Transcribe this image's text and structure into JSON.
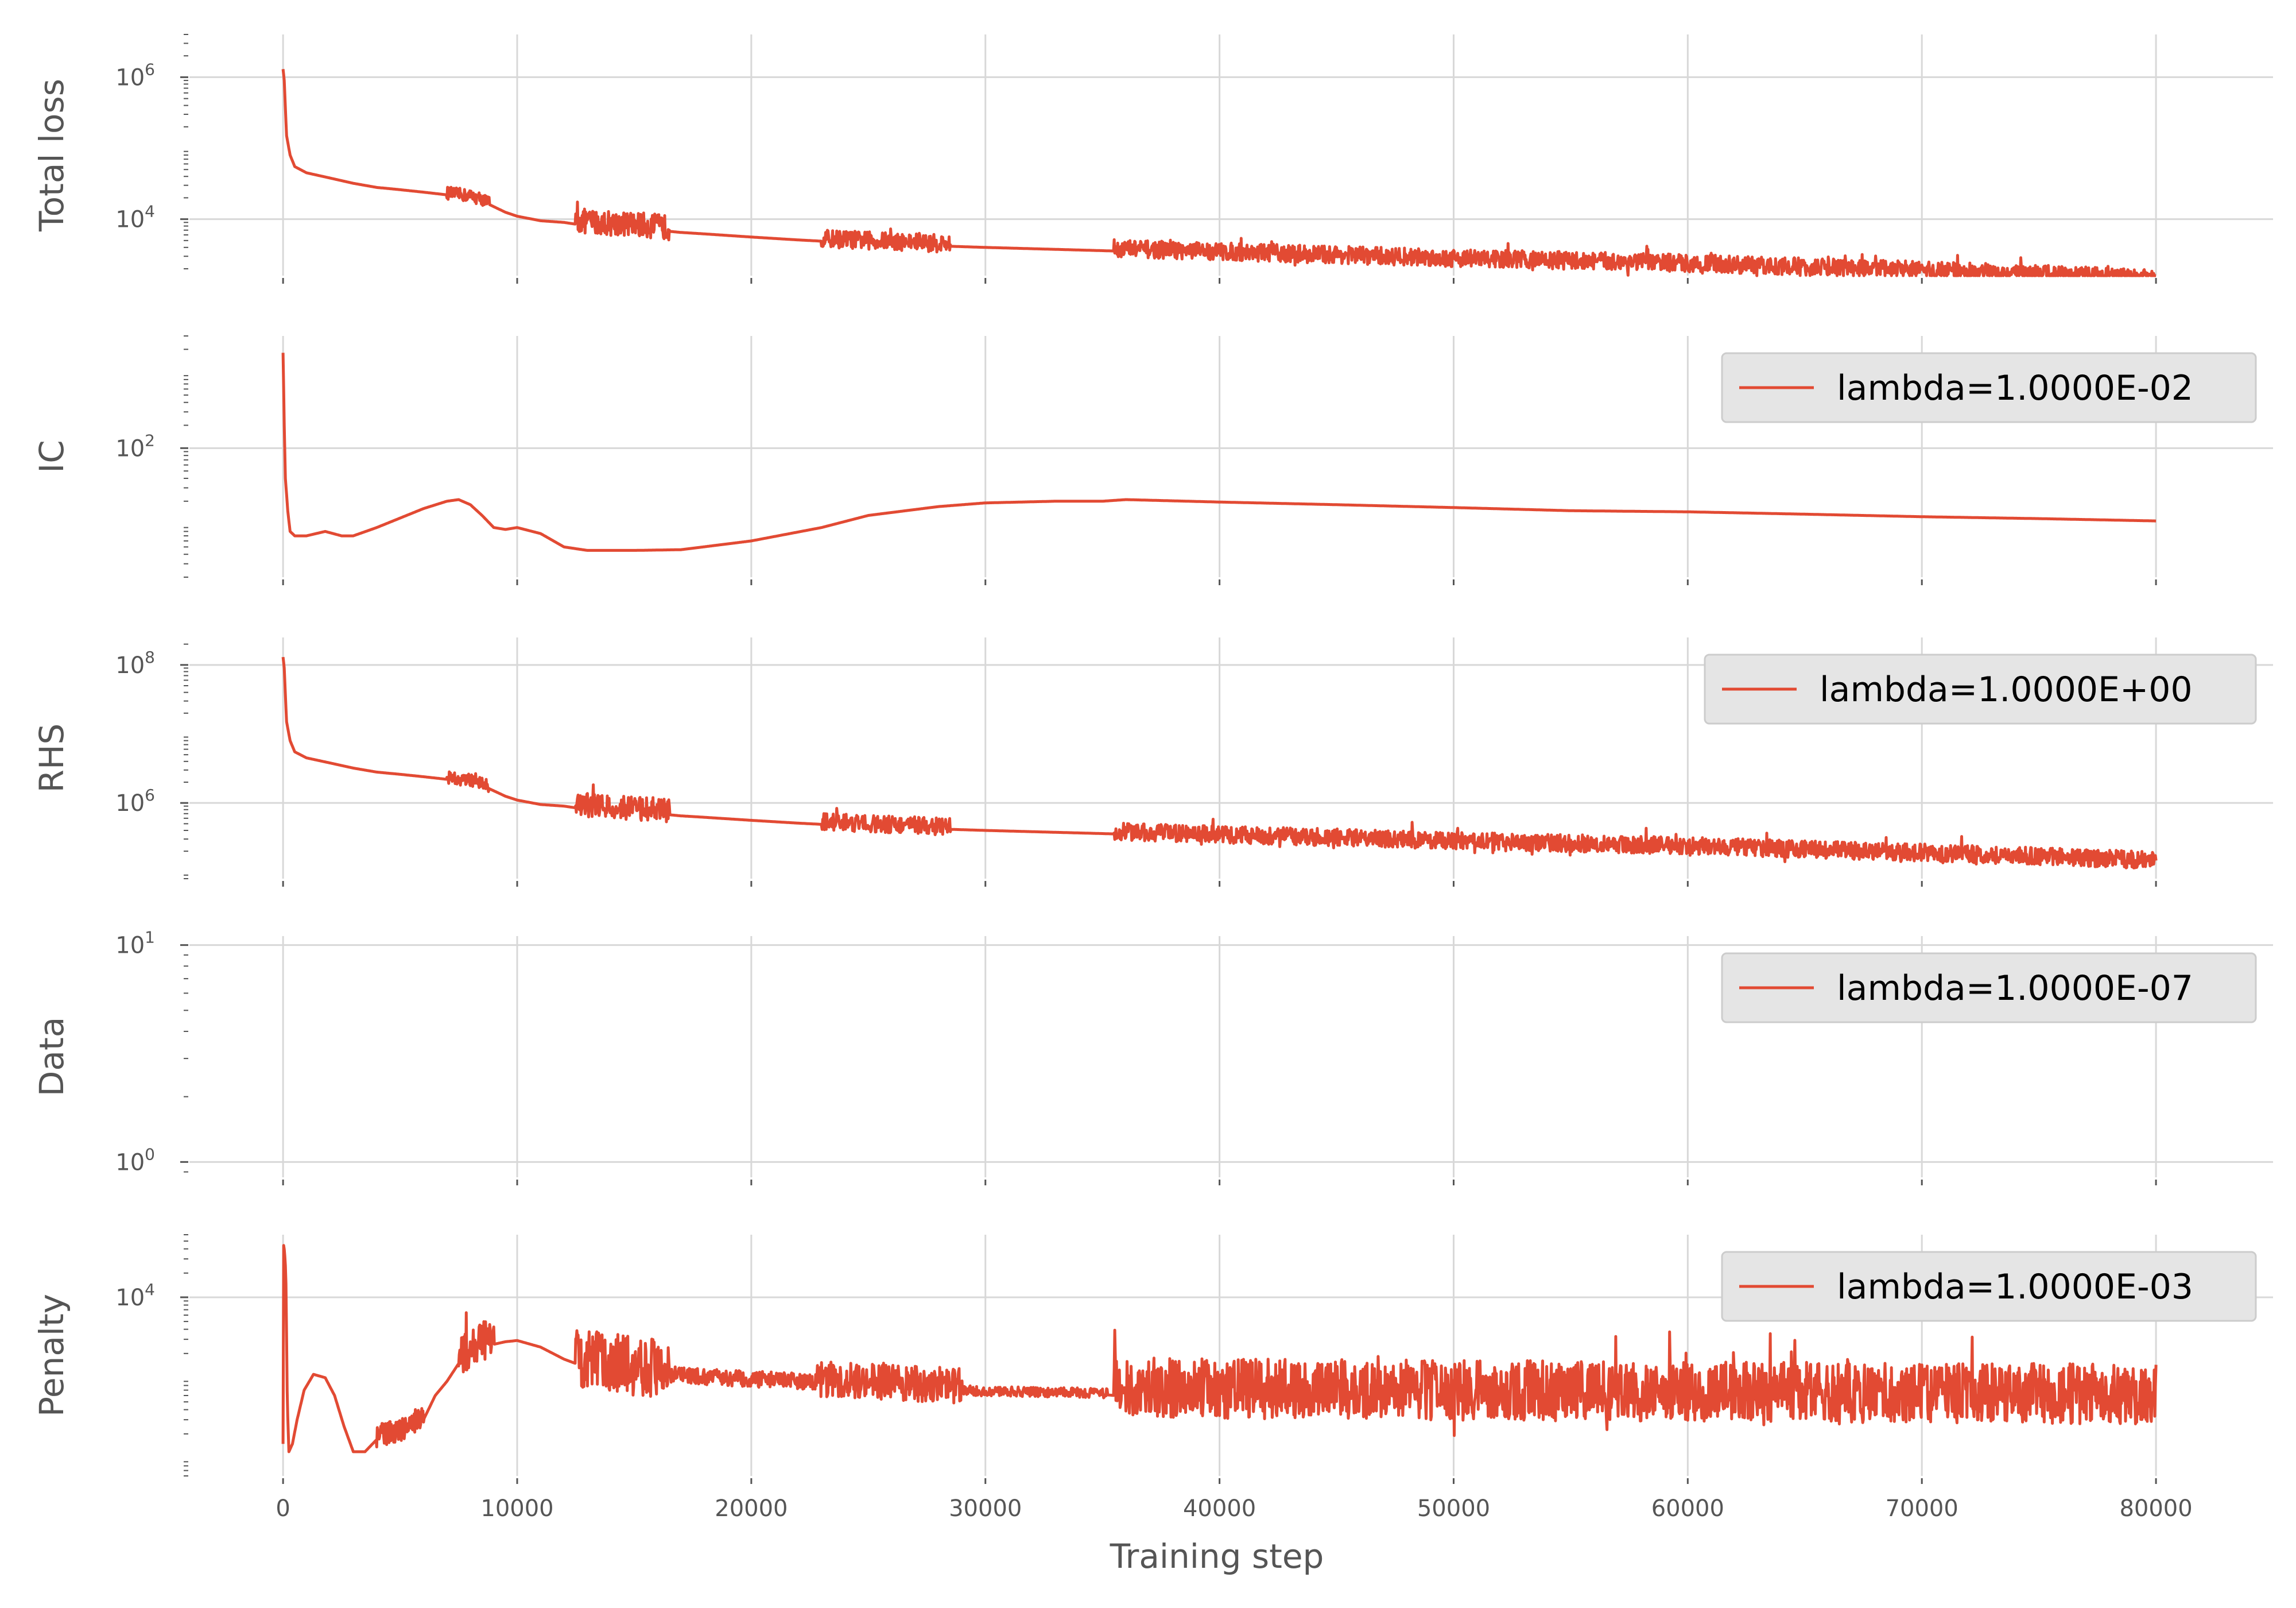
{
  "figure": {
    "xlabel": "Training step",
    "x_ticks": [
      "0",
      "10000",
      "20000",
      "30000",
      "40000",
      "50000",
      "60000",
      "70000",
      "80000"
    ]
  },
  "style": {
    "line_color": "#E24A33",
    "grid_color": "#D8D8D8",
    "tick_color": "#555555",
    "legend_bg": "#E5E5E5",
    "legend_border": "#CCCCCC"
  },
  "chart_data": [
    {
      "type": "line",
      "ylabel": "Total loss",
      "yscale": "log",
      "ylim": [
        1600,
        4000000
      ],
      "y_ticks": [
        {
          "base": "10",
          "exp": "4",
          "value": 10000
        },
        {
          "base": "10",
          "exp": "6",
          "value": 1000000
        }
      ],
      "legend": null,
      "grid": true,
      "x": [
        0,
        50,
        150,
        300,
        500,
        1000,
        2000,
        3000,
        4000,
        5000,
        6000,
        7000,
        8000,
        8500,
        9000,
        9500,
        10000,
        11000,
        12000,
        12500,
        13000,
        14000,
        15000,
        16000,
        17000,
        18000,
        20000,
        22000,
        23000,
        25000,
        28000,
        30000,
        35000,
        40000,
        45000,
        50000,
        55000,
        60000,
        65000,
        70000,
        75000,
        80000
      ],
      "values": [
        1300000,
        900000,
        150000,
        80000,
        55000,
        45000,
        38000,
        32000,
        28000,
        26000,
        24000,
        22000,
        20000,
        18000,
        15000,
        12500,
        11000,
        9500,
        9000,
        8500,
        8200,
        7800,
        7500,
        7000,
        6500,
        6200,
        5600,
        5100,
        4900,
        4600,
        4200,
        4000,
        3600,
        3200,
        2900,
        2600,
        2400,
        2200,
        1950,
        1750,
        1550,
        1350
      ],
      "noise_bands": [
        {
          "x0": 7000,
          "x1": 8800,
          "amp": 0.18
        },
        {
          "x0": 12500,
          "x1": 16500,
          "amp": 0.35
        },
        {
          "x0": 23000,
          "x1": 28500,
          "amp": 0.25
        },
        {
          "x0": 35500,
          "x1": 80000,
          "amp": 0.25
        }
      ]
    },
    {
      "type": "line",
      "ylabel": "IC",
      "yscale": "log",
      "ylim": [
        2,
        3000
      ],
      "y_ticks": [
        {
          "base": "10",
          "exp": "2",
          "value": 100
        }
      ],
      "legend": "lambda=1.0000E-02",
      "legend_position": "upper right",
      "grid": true,
      "x": [
        0,
        50,
        100,
        200,
        300,
        500,
        1000,
        1800,
        2500,
        3000,
        4000,
        5000,
        6000,
        7000,
        7500,
        8000,
        8500,
        9000,
        9500,
        10000,
        11000,
        12000,
        13000,
        15000,
        17000,
        20000,
        23000,
        25000,
        28000,
        30000,
        33000,
        35000,
        36000,
        40000,
        45000,
        50000,
        55000,
        60000,
        65000,
        70000,
        75000,
        80000
      ],
      "values": [
        1800,
        200,
        40,
        15,
        8,
        7,
        7,
        8,
        7,
        7,
        9,
        12,
        16,
        20,
        21,
        18,
        13,
        9,
        8.5,
        9,
        7.5,
        5,
        4.5,
        4.5,
        4.6,
        6,
        9,
        13,
        17,
        19,
        20,
        20,
        21,
        19.5,
        18,
        16.5,
        15,
        14.5,
        13.5,
        12.5,
        11.8,
        11
      ],
      "noise_bands": []
    },
    {
      "type": "line",
      "ylabel": "RHS",
      "yscale": "log",
      "ylim": [
        80000,
        250000000
      ],
      "y_ticks": [
        {
          "base": "10",
          "exp": "6",
          "value": 1000000
        },
        {
          "base": "10",
          "exp": "8",
          "value": 100000000
        }
      ],
      "legend": "lambda=1.0000E+00",
      "legend_position": "upper right",
      "grid": true,
      "x": [
        0,
        50,
        150,
        300,
        500,
        1000,
        2000,
        3000,
        4000,
        5000,
        6000,
        7000,
        8000,
        8500,
        9000,
        9500,
        10000,
        11000,
        12000,
        12500,
        13000,
        14000,
        15000,
        16000,
        17000,
        18000,
        20000,
        22000,
        23000,
        25000,
        28000,
        30000,
        35000,
        40000,
        45000,
        50000,
        55000,
        60000,
        65000,
        70000,
        75000,
        80000
      ],
      "values": [
        130000000,
        90000000,
        15000000,
        8000000,
        5500000,
        4500000,
        3800000,
        3200000,
        2800000,
        2600000,
        2400000,
        2200000,
        2000000,
        1800000,
        1500000,
        1250000,
        1100000,
        950000,
        900000,
        850000,
        820000,
        780000,
        750000,
        700000,
        650000,
        620000,
        560000,
        510000,
        490000,
        460000,
        420000,
        400000,
        360000,
        320000,
        290000,
        260000,
        240000,
        220000,
        195000,
        175000,
        155000,
        135000
      ],
      "noise_bands": [
        {
          "x0": 7000,
          "x1": 8800,
          "amp": 0.18
        },
        {
          "x0": 12500,
          "x1": 16500,
          "amp": 0.35
        },
        {
          "x0": 23000,
          "x1": 28500,
          "amp": 0.25
        },
        {
          "x0": 35500,
          "x1": 80000,
          "amp": 0.25
        }
      ]
    },
    {
      "type": "line",
      "ylabel": "Data",
      "yscale": "log",
      "ylim": [
        0.85,
        11
      ],
      "y_ticks": [
        {
          "base": "10",
          "exp": "0",
          "value": 1
        },
        {
          "base": "10",
          "exp": "1",
          "value": 10
        }
      ],
      "legend": "lambda=1.0000E-07",
      "legend_position": "upper right",
      "grid": true,
      "x": [],
      "values": [],
      "noise_bands": []
    },
    {
      "type": "line",
      "ylabel": "Penalty",
      "yscale": "log",
      "ylim": [
        60,
        60000
      ],
      "y_ticks": [
        {
          "base": "10",
          "exp": "4",
          "value": 10000
        }
      ],
      "legend": "lambda=1.0000E-03",
      "legend_position": "upper right",
      "grid": true,
      "x": [
        0,
        20,
        60,
        120,
        180,
        250,
        400,
        600,
        900,
        1300,
        1800,
        2200,
        2600,
        3000,
        3500,
        4000,
        5000,
        6000,
        6500,
        7000,
        7500,
        8000,
        8500,
        9000,
        9500,
        10000,
        11000,
        12000,
        12500,
        13000,
        14000,
        15000,
        16000,
        17000,
        18000,
        20000,
        22000,
        23000,
        25000,
        28000,
        29000,
        30000,
        33000,
        35000,
        36000,
        40000,
        50000,
        60000,
        70000,
        80000
      ],
      "values": [
        150,
        45000,
        38000,
        20000,
        500,
        120,
        150,
        300,
        700,
        1100,
        1000,
        600,
        250,
        120,
        120,
        170,
        200,
        300,
        600,
        900,
        1500,
        2000,
        2400,
        2600,
        2800,
        2900,
        2400,
        1700,
        1500,
        1300,
        1200,
        1100,
        1050,
        1000,
        950,
        900,
        850,
        820,
        780,
        700,
        660,
        650,
        630,
        620,
        580,
        560,
        540,
        520,
        500,
        480
      ],
      "noise_bands": [
        {
          "x0": 4000,
          "x1": 6000,
          "amp": 0.3
        },
        {
          "x0": 7500,
          "x1": 9000,
          "amp": 0.5
        },
        {
          "x0": 12500,
          "x1": 16500,
          "amp": 0.75
        },
        {
          "x0": 16500,
          "x1": 22800,
          "amp": 0.2
        },
        {
          "x0": 22800,
          "x1": 29000,
          "amp": 0.45
        },
        {
          "x0": 29000,
          "x1": 35200,
          "amp": 0.12
        },
        {
          "x0": 35500,
          "x1": 80000,
          "amp": 0.75
        }
      ]
    }
  ]
}
